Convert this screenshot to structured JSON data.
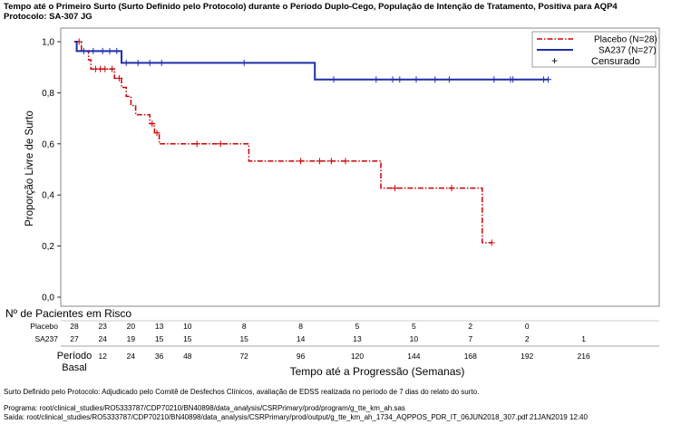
{
  "title_line1": "Tempo até o Primeiro Surto (Surto Definido pelo Protocolo) durante o Período Duplo-Cego, População de Intenção de Tratamento, Positiva para AQP4",
  "title_line2": "Protocolo: SA-307 JG",
  "footnote1": "Surto Definido pelo Protocolo: Adjudicado pelo Comitê de Desfechos Clínicos, avaliação de EDSS realizada no período de 7 dias do relato do surto.",
  "footnote2": "Programa: root/clinical_studies/RO5333787/CDP70210/BN40898/data_analysis/CSRPrimary/prod/program/g_tte_km_ah.sas",
  "footnote3": "Saída: root/clinical_studies/RO5333787/CDP70210/BN40898/data_analysis/CSRPrimary/prod/output/g_tte_km_ah_1734_AQPPOS_PDR_IT_06JUN2018_307.pdf 21JAN2019 12:40",
  "colors": {
    "placebo": "#cc0000",
    "sa237": "#1f2fa8"
  },
  "chart_data": {
    "type": "line",
    "subtype": "kaplan-meier step",
    "ylabel": "Proporção Livre de Surto",
    "xlabel": "Tempo até a Progressão (Semanas)",
    "ylim": [
      0,
      1
    ],
    "xlim": [
      0,
      224
    ],
    "y_ticks": [
      0.0,
      0.2,
      0.4,
      0.6,
      0.8,
      1.0
    ],
    "y_tick_labels": [
      "0,0",
      "0,2",
      "0,4",
      "0,6",
      "0,8",
      "1,0"
    ],
    "x_ticks": [
      0,
      12,
      24,
      36,
      48,
      72,
      96,
      120,
      144,
      168,
      192,
      216
    ],
    "x_tick_labels": [
      "Período Basal",
      "12",
      "24",
      "36",
      "48",
      "72",
      "96",
      "120",
      "144",
      "168",
      "192",
      "216"
    ],
    "legend": {
      "position": "top-right",
      "entries": [
        "Placebo (N=28)",
        "SA237 (N=27)",
        "Censurado"
      ],
      "censor_symbol": "+"
    },
    "series": [
      {
        "name": "Placebo (N=28)",
        "line_style": "dash-dot",
        "steps": [
          [
            0,
            1.0
          ],
          [
            3,
            0.964
          ],
          [
            6,
            0.929
          ],
          [
            7,
            0.893
          ],
          [
            17,
            0.857
          ],
          [
            20,
            0.821
          ],
          [
            22,
            0.786
          ],
          [
            24,
            0.75
          ],
          [
            26,
            0.714
          ],
          [
            32,
            0.679
          ],
          [
            34,
            0.643
          ],
          [
            36,
            0.6
          ],
          [
            74,
            0.533
          ],
          [
            130,
            0.427
          ],
          [
            173,
            0.213
          ]
        ],
        "end_x": 177,
        "censored": [
          [
            2,
            1.0
          ],
          [
            9,
            0.893
          ],
          [
            11,
            0.893
          ],
          [
            13,
            0.893
          ],
          [
            16,
            0.893
          ],
          [
            19,
            0.857
          ],
          [
            33,
            0.679
          ],
          [
            35,
            0.643
          ],
          [
            52,
            0.6
          ],
          [
            62,
            0.6
          ],
          [
            96,
            0.533
          ],
          [
            104,
            0.533
          ],
          [
            109,
            0.533
          ],
          [
            115,
            0.533
          ],
          [
            136,
            0.427
          ],
          [
            160,
            0.427
          ],
          [
            177,
            0.213
          ]
        ]
      },
      {
        "name": "SA237 (N=27)",
        "line_style": "solid",
        "steps": [
          [
            0,
            1.0
          ],
          [
            1,
            0.963
          ],
          [
            20,
            0.917
          ],
          [
            102,
            0.852
          ]
        ],
        "end_x": 201,
        "censored": [
          [
            4,
            0.963
          ],
          [
            8,
            0.963
          ],
          [
            12,
            0.963
          ],
          [
            15,
            0.963
          ],
          [
            18,
            0.963
          ],
          [
            22,
            0.917
          ],
          [
            27,
            0.917
          ],
          [
            32,
            0.917
          ],
          [
            37,
            0.917
          ],
          [
            72,
            0.917
          ],
          [
            110,
            0.852
          ],
          [
            128,
            0.852
          ],
          [
            135,
            0.852
          ],
          [
            138,
            0.852
          ],
          [
            145,
            0.852
          ],
          [
            153,
            0.852
          ],
          [
            159,
            0.852
          ],
          [
            178,
            0.852
          ],
          [
            185,
            0.852
          ],
          [
            186,
            0.852
          ],
          [
            199,
            0.852
          ],
          [
            201,
            0.852
          ]
        ]
      }
    ],
    "risk_table": {
      "title": "Nº de Pacientes em Risco",
      "times": [
        0,
        12,
        24,
        36,
        48,
        72,
        96,
        120,
        144,
        168,
        192,
        216
      ],
      "rows": [
        {
          "label": "Placebo",
          "values": [
            "28",
            "23",
            "20",
            "13",
            "10",
            "8",
            "8",
            "5",
            "5",
            "2",
            "0",
            ""
          ]
        },
        {
          "label": "SA237",
          "values": [
            "27",
            "24",
            "19",
            "15",
            "15",
            "15",
            "14",
            "13",
            "10",
            "7",
            "2",
            "1"
          ]
        }
      ]
    }
  }
}
